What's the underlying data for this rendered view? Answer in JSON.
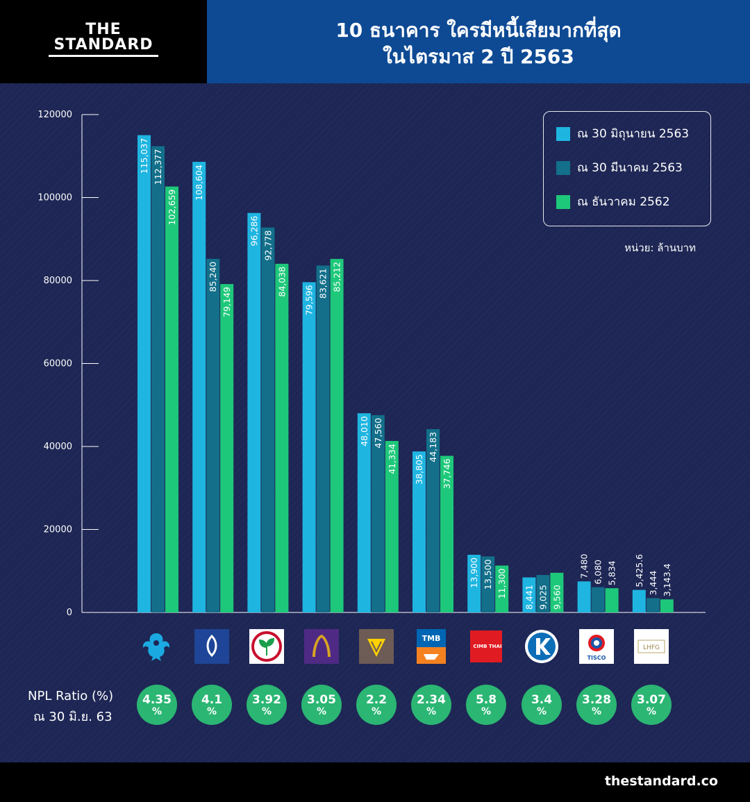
{
  "brand": {
    "line1": "THE",
    "line2": "STANDARD"
  },
  "title": {
    "line1": "10 ธนาคาร ใครมีหนี้เสียมากที่สุด",
    "line2": "ในไตรมาส 2 ปี 2563"
  },
  "colors": {
    "header_bg": "#0e4a94",
    "page_bg": "#1d2654",
    "series_jun": "#1fb5e1",
    "series_mar": "#136f8a",
    "series_dec": "#1ec87a",
    "npl_badge": "#2bb673"
  },
  "legend": {
    "unit_label": "หน่วย: ล้านบาท"
  },
  "chart_data": {
    "type": "bar",
    "ylim": [
      0,
      120000
    ],
    "yticks": [
      0,
      20000,
      40000,
      60000,
      80000,
      100000,
      120000
    ],
    "grid": false,
    "legend_position": "top-right",
    "categories": [
      "Krungthai",
      "Bangkok Bank",
      "Kasikornbank",
      "SCB",
      "Krungsri",
      "TMB",
      "CIMB Thai",
      "Kiatnakin",
      "Tisco",
      "LH Financial Group"
    ],
    "series": [
      {
        "name": "ณ 30 มิถุนายน 2563",
        "color": "#1fb5e1",
        "values": [
          115037,
          108604,
          96286,
          79596,
          48010,
          38805,
          13900,
          8441,
          7480,
          5425.6
        ],
        "labels": [
          "115,037",
          "108,604",
          "96,286",
          "79,596",
          "48,010",
          "38,805",
          "13,900",
          "8,441",
          "7,480",
          "5,425.6"
        ]
      },
      {
        "name": "ณ 30 มีนาคม 2563",
        "color": "#136f8a",
        "values": [
          112377,
          85240,
          92778,
          83621,
          47560,
          44183,
          13500,
          9025,
          6080,
          3444
        ],
        "labels": [
          "112,377",
          "85,240",
          "92,778",
          "83,621",
          "47,560",
          "44,183",
          "13,500",
          "9,025",
          "6,080",
          "3,444"
        ]
      },
      {
        "name": "ณ  ธันวาคม 2562",
        "color": "#1ec87a",
        "values": [
          102659,
          79149,
          84038,
          85212,
          41334,
          37746,
          11300,
          9560,
          5834,
          3143.4
        ],
        "labels": [
          "102,659",
          "79,149",
          "84,038",
          "85,212",
          "41,334",
          "37,746",
          "11,300",
          "9,560",
          "5,834",
          "3,143.4"
        ]
      }
    ]
  },
  "npl": {
    "label_line1": "NPL Ratio (%)",
    "label_line2": "ณ 30 มิ.ย. 63",
    "percent_sign": "%",
    "values": [
      "4.35",
      "4.1",
      "3.92",
      "3.05",
      "2.2",
      "2.34",
      "5.8",
      "3.4",
      "3.28",
      "3.07"
    ]
  },
  "logos": {
    "tmb_text": "TMB",
    "cimb_text": "CIMB THAI",
    "tisco_text": "TISCO",
    "lhfg_text": "LHFG",
    "icons": [
      "krungthai-garuda-icon",
      "bangkok-bank-lotus-icon",
      "kasikorn-sprout-icon",
      "scb-arch-icon",
      "krungsri-icon",
      "tmb-icon",
      "cimb-icon",
      "kiatnakin-k-icon",
      "tisco-icon",
      "lhfg-icon"
    ]
  },
  "footer": {
    "site": "thestandard.co"
  }
}
